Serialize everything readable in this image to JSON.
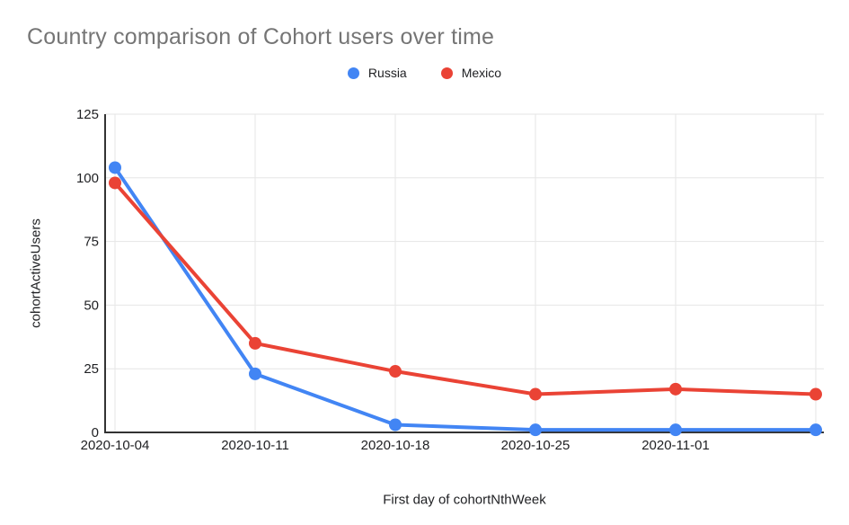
{
  "colors": {
    "title_text": "#757575",
    "axis_text": "#202124",
    "gridline": "#e6e6e6",
    "axis_line": "#333333",
    "background": "#ffffff",
    "russia_blue": "#4285F4",
    "mexico_red": "#EA4335"
  },
  "chart_data": {
    "type": "line",
    "title": "Country comparison of Cohort users over time",
    "xlabel": "First day of cohortNthWeek",
    "ylabel": "cohortActiveUsers",
    "legend_position": "top",
    "grid": true,
    "ylim": [
      0,
      125
    ],
    "y_ticks": [
      0,
      25,
      50,
      75,
      100,
      125
    ],
    "x_tick_labels": [
      "2020-10-04",
      "2020-10-11",
      "2020-10-18",
      "2020-10-25",
      "2020-11-01",
      ""
    ],
    "series": [
      {
        "name": "Russia",
        "color": "#4285F4",
        "values": [
          104,
          23,
          3,
          1,
          1,
          1
        ]
      },
      {
        "name": "Mexico",
        "color": "#EA4335",
        "values": [
          98,
          35,
          24,
          15,
          17,
          15
        ]
      }
    ]
  }
}
